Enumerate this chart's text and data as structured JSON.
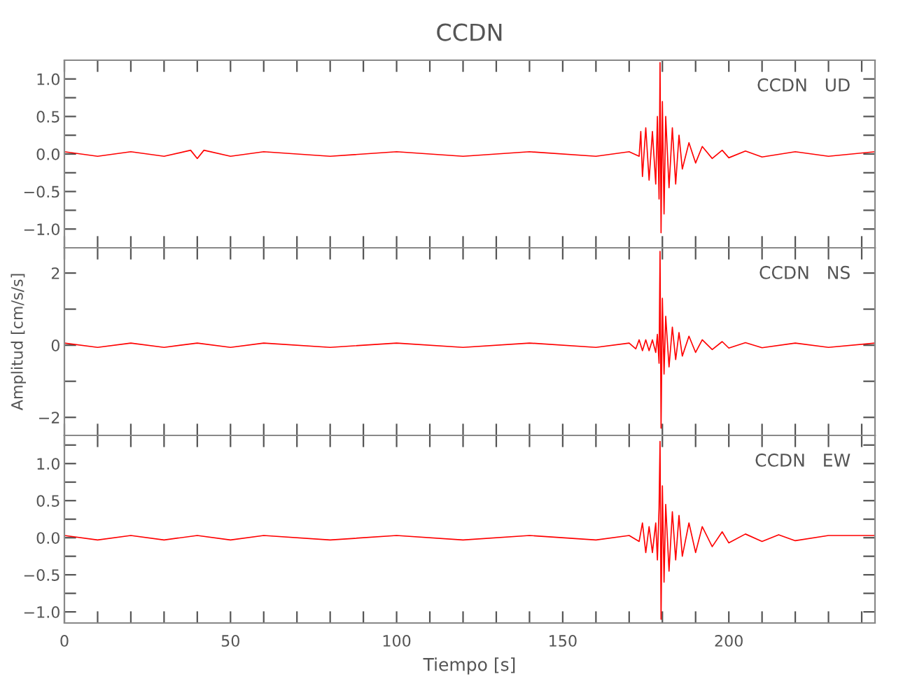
{
  "chart_data": [
    {
      "type": "line",
      "title": "CCDN",
      "annotations": [
        "CCDN   UD"
      ],
      "tick_labels": "y",
      "line_style": "solid",
      "marker": "none",
      "grid": false,
      "legend": false,
      "xlim": [
        0,
        244
      ],
      "xticks": [
        0,
        {
          "value": 10,
          "label": null
        },
        {
          "value": 20,
          "label": null
        },
        {
          "value": 30,
          "label": null
        },
        {
          "value": 40,
          "label": null
        },
        50,
        {
          "value": 60,
          "label": null
        },
        {
          "value": 70,
          "label": null
        },
        {
          "value": 80,
          "label": null
        },
        {
          "value": 90,
          "label": null
        },
        100,
        {
          "value": 110,
          "label": null
        },
        {
          "value": 120,
          "label": null
        },
        {
          "value": 130,
          "label": null
        },
        {
          "value": 140,
          "label": null
        },
        150,
        {
          "value": 160,
          "label": null
        },
        {
          "value": 170,
          "label": null
        },
        {
          "value": 180,
          "label": null
        },
        {
          "value": 190,
          "label": null
        },
        200,
        {
          "value": 210,
          "label": null
        },
        {
          "value": 220,
          "label": null
        },
        {
          "value": 230,
          "label": null
        },
        {
          "value": 240,
          "label": null
        }
      ],
      "ylim": [
        -1.25,
        1.25
      ],
      "yticks": [
        {
          "value": -1.0,
          "label": "−1.0"
        },
        {
          "value": -0.75,
          "label": null
        },
        {
          "value": -0.5,
          "label": "−0.5"
        },
        {
          "value": -0.25,
          "label": null
        },
        {
          "value": 0.0,
          "label": "0.0"
        },
        {
          "value": 0.25,
          "label": null
        },
        {
          "value": 0.5,
          "label": "0.5"
        },
        {
          "value": 0.75,
          "label": null
        },
        {
          "value": 1.0,
          "label": "1.0"
        }
      ],
      "series": [
        {
          "color": "#ff0000",
          "x": [
            0,
            10,
            20,
            30,
            38,
            40,
            42,
            50,
            60,
            80,
            100,
            120,
            140,
            160,
            170,
            173,
            173.5,
            174,
            175,
            176,
            177,
            178,
            178.5,
            179,
            179.3,
            179.6,
            180,
            180.5,
            181,
            182,
            183,
            184,
            185,
            186,
            188,
            190,
            192,
            195,
            198,
            200,
            205,
            210,
            220,
            230,
            244
          ],
          "values": [
            0.03,
            -0.03,
            0.03,
            -0.03,
            0.05,
            -0.06,
            0.05,
            -0.03,
            0.03,
            -0.03,
            0.03,
            -0.03,
            0.03,
            -0.03,
            0.03,
            -0.03,
            0.3,
            -0.3,
            0.35,
            -0.35,
            0.3,
            -0.4,
            0.5,
            -0.6,
            1.22,
            -1.05,
            0.7,
            -0.8,
            0.5,
            -0.45,
            0.35,
            -0.4,
            0.25,
            -0.2,
            0.15,
            -0.12,
            0.1,
            -0.06,
            0.05,
            -0.05,
            0.04,
            -0.04,
            0.03,
            -0.03,
            0.03
          ]
        }
      ]
    },
    {
      "type": "line",
      "ylabel": "Amplitud [cm/s/s]",
      "annotations": [
        "CCDN   NS"
      ],
      "tick_labels": "y",
      "line_style": "solid",
      "marker": "none",
      "grid": false,
      "legend": false,
      "xlim": [
        0,
        244
      ],
      "xticks": [
        0,
        {
          "value": 10,
          "label": null
        },
        {
          "value": 20,
          "label": null
        },
        {
          "value": 30,
          "label": null
        },
        {
          "value": 40,
          "label": null
        },
        50,
        {
          "value": 60,
          "label": null
        },
        {
          "value": 70,
          "label": null
        },
        {
          "value": 80,
          "label": null
        },
        {
          "value": 90,
          "label": null
        },
        100,
        {
          "value": 110,
          "label": null
        },
        {
          "value": 120,
          "label": null
        },
        {
          "value": 130,
          "label": null
        },
        {
          "value": 140,
          "label": null
        },
        150,
        {
          "value": 160,
          "label": null
        },
        {
          "value": 170,
          "label": null
        },
        {
          "value": 180,
          "label": null
        },
        {
          "value": 190,
          "label": null
        },
        200,
        {
          "value": 210,
          "label": null
        },
        {
          "value": 220,
          "label": null
        },
        {
          "value": 230,
          "label": null
        },
        {
          "value": 240,
          "label": null
        }
      ],
      "ylim": [
        -2.5,
        2.7
      ],
      "yticks": [
        {
          "value": -2,
          "label": "−2"
        },
        {
          "value": -1,
          "label": null
        },
        0,
        {
          "value": 1,
          "label": null
        },
        2
      ],
      "series": [
        {
          "color": "#ff0000",
          "x": [
            0,
            10,
            20,
            30,
            40,
            50,
            60,
            80,
            100,
            120,
            140,
            160,
            170,
            172,
            173,
            174,
            175,
            176,
            177,
            178,
            178.5,
            179,
            179.3,
            179.6,
            180,
            180.5,
            181,
            182,
            183,
            184,
            185,
            186,
            188,
            190,
            192,
            195,
            198,
            200,
            205,
            210,
            220,
            230,
            244
          ],
          "values": [
            0.06,
            -0.06,
            0.06,
            -0.06,
            0.06,
            -0.06,
            0.06,
            -0.06,
            0.06,
            -0.06,
            0.06,
            -0.06,
            0.06,
            -0.1,
            0.15,
            -0.15,
            0.15,
            -0.15,
            0.15,
            -0.2,
            0.3,
            -0.5,
            2.6,
            -2.3,
            1.3,
            -0.8,
            0.8,
            -0.6,
            0.5,
            -0.4,
            0.35,
            -0.3,
            0.25,
            -0.2,
            0.15,
            -0.12,
            0.1,
            -0.08,
            0.07,
            -0.07,
            0.06,
            -0.06,
            0.06
          ]
        }
      ]
    },
    {
      "type": "line",
      "xlabel": "Tiempo [s]",
      "annotations": [
        "CCDN   EW"
      ],
      "line_style": "solid",
      "marker": "none",
      "grid": false,
      "legend": false,
      "xlim": [
        0,
        244
      ],
      "xticks": [
        0,
        {
          "value": 10,
          "label": null
        },
        {
          "value": 20,
          "label": null
        },
        {
          "value": 30,
          "label": null
        },
        {
          "value": 40,
          "label": null
        },
        50,
        {
          "value": 60,
          "label": null
        },
        {
          "value": 70,
          "label": null
        },
        {
          "value": 80,
          "label": null
        },
        {
          "value": 90,
          "label": null
        },
        100,
        {
          "value": 110,
          "label": null
        },
        {
          "value": 120,
          "label": null
        },
        {
          "value": 130,
          "label": null
        },
        {
          "value": 140,
          "label": null
        },
        150,
        {
          "value": 160,
          "label": null
        },
        {
          "value": 170,
          "label": null
        },
        {
          "value": 180,
          "label": null
        },
        {
          "value": 190,
          "label": null
        },
        200,
        {
          "value": 210,
          "label": null
        },
        {
          "value": 220,
          "label": null
        },
        {
          "value": 230,
          "label": null
        },
        {
          "value": 240,
          "label": null
        }
      ],
      "ylim": [
        -1.15,
        1.38
      ],
      "yticks": [
        {
          "value": -1.0,
          "label": "−1.0"
        },
        {
          "value": -0.75,
          "label": null
        },
        {
          "value": -0.5,
          "label": "−0.5"
        },
        {
          "value": -0.25,
          "label": null
        },
        {
          "value": 0.0,
          "label": "0.0"
        },
        {
          "value": 0.25,
          "label": null
        },
        {
          "value": 0.5,
          "label": "0.5"
        },
        {
          "value": 0.75,
          "label": null
        },
        {
          "value": 1.0,
          "label": "1.0"
        },
        {
          "value": 1.25,
          "label": null
        }
      ],
      "series": [
        {
          "color": "#ff0000",
          "x": [
            0,
            10,
            20,
            30,
            40,
            50,
            60,
            80,
            100,
            120,
            140,
            160,
            170,
            173,
            174,
            175,
            176,
            177,
            178,
            178.5,
            179,
            179.3,
            179.6,
            180,
            180.5,
            181,
            182,
            183,
            184,
            185,
            186,
            188,
            190,
            192,
            195,
            198,
            200,
            205,
            210,
            215,
            220,
            230,
            244
          ],
          "values": [
            0.03,
            -0.03,
            0.03,
            -0.03,
            0.03,
            -0.03,
            0.03,
            -0.03,
            0.03,
            -0.03,
            0.03,
            -0.03,
            0.03,
            -0.05,
            0.2,
            -0.2,
            0.15,
            -0.2,
            0.2,
            -0.3,
            0.4,
            1.3,
            -1.1,
            0.7,
            -0.6,
            0.45,
            -0.45,
            0.35,
            -0.3,
            0.3,
            -0.25,
            0.2,
            -0.2,
            0.15,
            -0.12,
            0.08,
            -0.07,
            0.05,
            -0.05,
            0.04,
            -0.04,
            0.03,
            0.03
          ]
        }
      ]
    }
  ]
}
